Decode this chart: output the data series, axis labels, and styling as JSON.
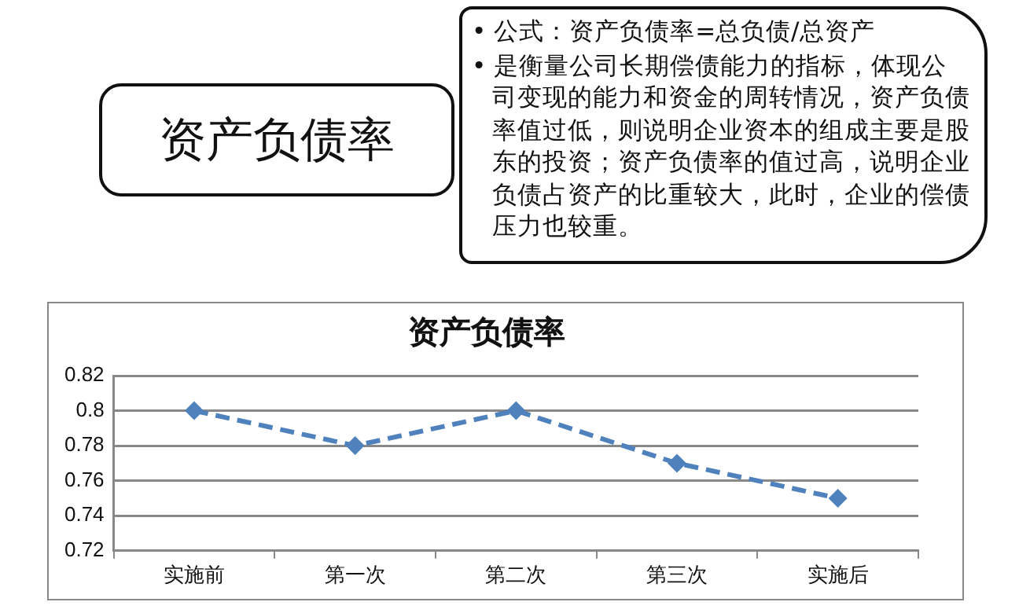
{
  "chart_data": {
    "type": "line",
    "title": "资产负债率",
    "categories": [
      "实施前",
      "第一次",
      "第二次",
      "第三次",
      "实施后"
    ],
    "series": [
      {
        "color": "#4f81bd",
        "values": [
          0.8,
          0.78,
          0.8,
          0.77,
          0.75
        ]
      }
    ],
    "ylim": [
      0.72,
      0.82
    ],
    "yticks": [
      0.72,
      0.74,
      0.76,
      0.78,
      0.8,
      0.82
    ],
    "grid": "y",
    "legend": false,
    "marker": "diamond",
    "line_style": "dashed",
    "annotations": [
      "资产负债率",
      "• 公式：资产负债率=总负债/总资产",
      "• 是衡量公司长期偿债能力的指标，体现公司变现的能力和资金的周转情况，资产负债率值过低，则说明企业资本的组成主要是股东的投资；资产负债率的值过高，说明企业负债占资产的比重较大，此时，企业的偿债压力也较重。"
    ]
  }
}
